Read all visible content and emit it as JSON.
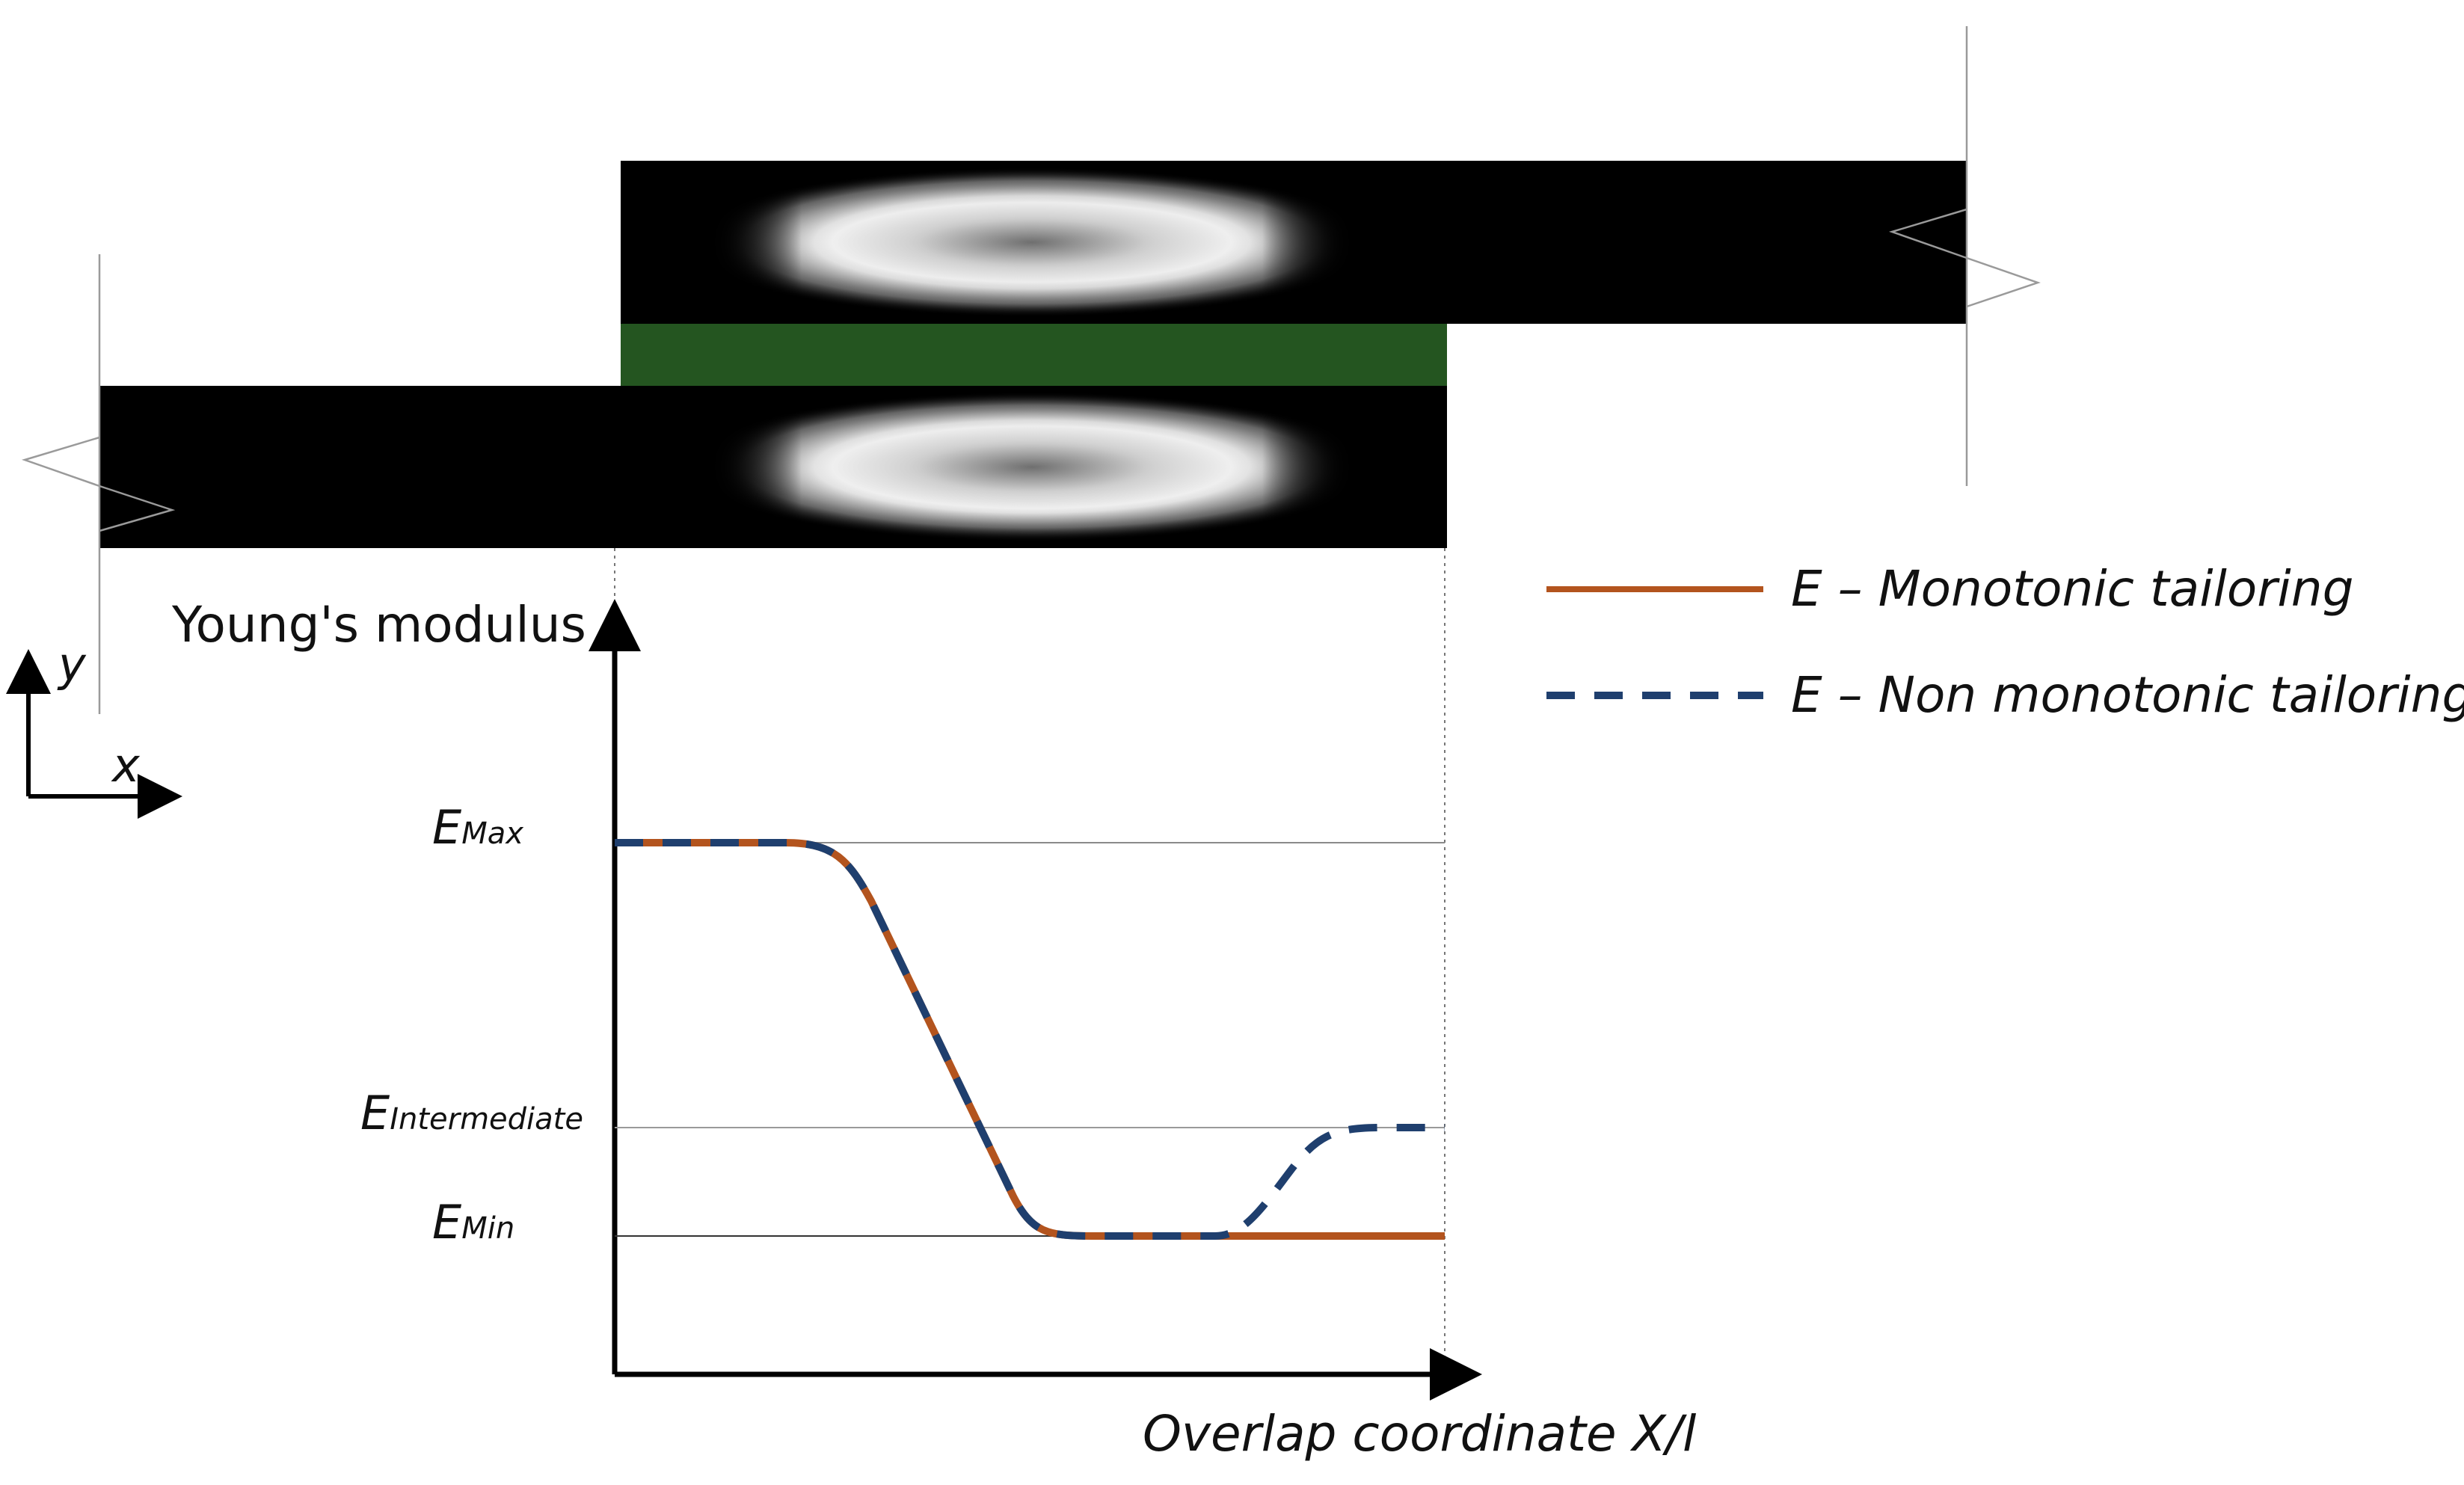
{
  "axis": {
    "y_label": "Young's modulus",
    "x_label": "Overlap coordinate X/l"
  },
  "coord_system": {
    "y": "y",
    "x": "x"
  },
  "levels": {
    "max": {
      "base": "E",
      "sub": "Max",
      "value": 3
    },
    "intermediate": {
      "base": "E",
      "sub": "Intermediate",
      "value": 1
    },
    "min": {
      "base": "E",
      "sub": "Min",
      "value": 0
    }
  },
  "legend": {
    "items": [
      {
        "label": "E – Monotonic tailoring",
        "color": "#b3541e",
        "style": "solid"
      },
      {
        "label": "E – Non monotonic tailoring",
        "color": "#1f3f6e",
        "style": "dashed"
      }
    ]
  },
  "colors": {
    "adherend": "#000000",
    "adhesive": "#245520",
    "monotonic": "#b3541e",
    "non_monotonic": "#1f3f6e"
  },
  "chart_data": {
    "type": "line",
    "xlabel": "Overlap coordinate X/l",
    "ylabel": "Young's modulus",
    "xlim": [
      0,
      1
    ],
    "series": [
      {
        "name": "E – Monotonic tailoring",
        "points": [
          [
            0,
            3
          ],
          [
            0.2,
            3
          ],
          [
            0.3,
            2.8
          ],
          [
            0.48,
            0.35
          ],
          [
            0.55,
            0
          ],
          [
            1.0,
            0
          ]
        ]
      },
      {
        "name": "E – Non monotonic tailoring",
        "points": [
          [
            0,
            3
          ],
          [
            0.2,
            3
          ],
          [
            0.3,
            2.8
          ],
          [
            0.48,
            0.35
          ],
          [
            0.55,
            0
          ],
          [
            0.73,
            0
          ],
          [
            0.86,
            0.9
          ],
          [
            1.0,
            1
          ]
        ]
      }
    ]
  }
}
